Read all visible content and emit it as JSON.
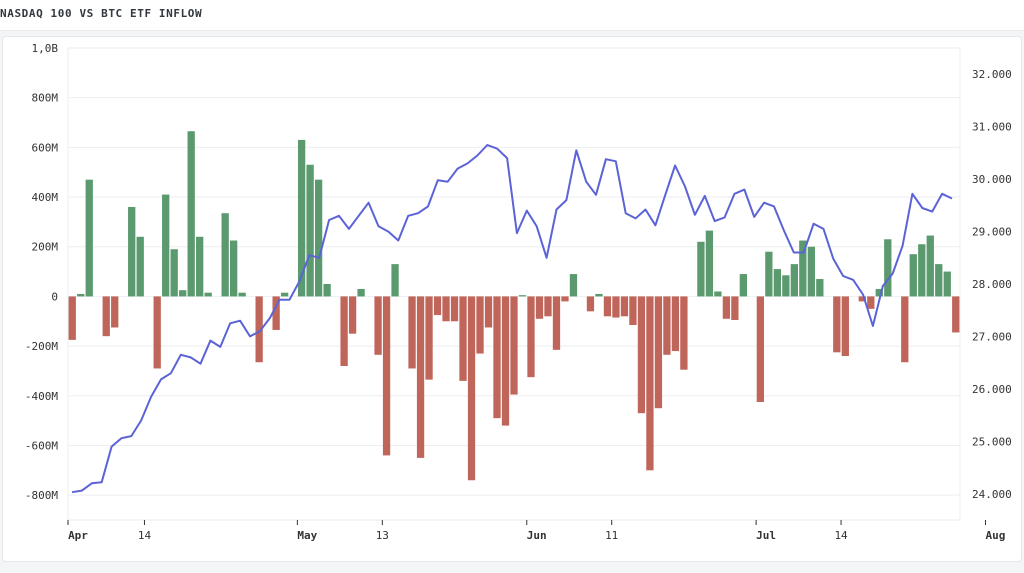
{
  "page": {
    "title": "NASDAQ 100 VS BTC ETF INFLOW"
  },
  "colors": {
    "positive_bar": "#5a9a6e",
    "negative_bar": "#c0655a",
    "line": "#5b63d6",
    "grid": "#eceef0",
    "axis_text": "#333333"
  },
  "chart_data": {
    "type": "bar",
    "combo": "bar+line",
    "title": "NASDAQ 100 VS BTC ETF INFLOW",
    "grid": true,
    "left_axis": {
      "min": -900000000,
      "max": 1000000000,
      "ticks": [
        {
          "value": 1000000000,
          "label": "1,0B"
        },
        {
          "value": 800000000,
          "label": "800M"
        },
        {
          "value": 600000000,
          "label": "600M"
        },
        {
          "value": 400000000,
          "label": "400M"
        },
        {
          "value": 200000000,
          "label": "200M"
        },
        {
          "value": 0,
          "label": "0"
        },
        {
          "value": -200000000,
          "label": "-200M"
        },
        {
          "value": -400000000,
          "label": "-400M"
        },
        {
          "value": -600000000,
          "label": "-600M"
        },
        {
          "value": -800000000,
          "label": "-800M"
        }
      ]
    },
    "right_axis": {
      "min": 23500,
      "max": 32500,
      "ticks": [
        {
          "value": 32000,
          "label": "32.000"
        },
        {
          "value": 31000,
          "label": "31.000"
        },
        {
          "value": 30000,
          "label": "30.000"
        },
        {
          "value": 29000,
          "label": "29.000"
        },
        {
          "value": 28000,
          "label": "28.000"
        },
        {
          "value": 27000,
          "label": "27.000"
        },
        {
          "value": 26000,
          "label": "26.000"
        },
        {
          "value": 25000,
          "label": "25.000"
        },
        {
          "value": 24000,
          "label": "24.000"
        }
      ]
    },
    "x_axis": {
      "ticks": [
        {
          "index": 0,
          "label": "Apr",
          "bold": true
        },
        {
          "index": 9,
          "label": "14",
          "bold": false
        },
        {
          "index": 27,
          "label": "May",
          "bold": true
        },
        {
          "index": 37,
          "label": "13",
          "bold": false
        },
        {
          "index": 54,
          "label": "Jun",
          "bold": true
        },
        {
          "index": 64,
          "label": "11",
          "bold": false
        },
        {
          "index": 81,
          "label": "Jul",
          "bold": true
        },
        {
          "index": 91,
          "label": "14",
          "bold": false
        },
        {
          "index": 108,
          "label": "Aug",
          "bold": true
        }
      ]
    },
    "series": [
      {
        "type": "bar",
        "axis": "left",
        "values": [
          -175000000,
          10000000,
          470000000,
          0,
          -160000000,
          -125000000,
          0,
          360000000,
          240000000,
          0,
          -290000000,
          410000000,
          190000000,
          25000000,
          665000000,
          240000000,
          15000000,
          0,
          335000000,
          225000000,
          15000000,
          0,
          -265000000,
          0,
          -135000000,
          15000000,
          0,
          630000000,
          530000000,
          470000000,
          50000000,
          0,
          -280000000,
          -150000000,
          30000000,
          0,
          -235000000,
          -640000000,
          130000000,
          0,
          -290000000,
          -650000000,
          -335000000,
          -75000000,
          -100000000,
          -100000000,
          -340000000,
          -740000000,
          -230000000,
          -125000000,
          -490000000,
          -520000000,
          -395000000,
          5000000,
          -325000000,
          -90000000,
          -80000000,
          -215000000,
          -20000000,
          90000000,
          0,
          -60000000,
          10000000,
          -80000000,
          -85000000,
          -80000000,
          -115000000,
          -470000000,
          -700000000,
          -450000000,
          -235000000,
          -220000000,
          -295000000,
          0,
          220000000,
          265000000,
          20000000,
          -90000000,
          -95000000,
          90000000,
          0,
          -425000000,
          180000000,
          110000000,
          85000000,
          130000000,
          225000000,
          200000000,
          70000000,
          0,
          -225000000,
          -240000000,
          0,
          -20000000,
          -50000000,
          30000000,
          230000000,
          0,
          -265000000,
          170000000,
          210000000,
          245000000,
          130000000,
          100000000,
          -145000000
        ]
      },
      {
        "type": "line",
        "axis": "right",
        "values": [
          24030,
          24060,
          24200,
          24220,
          24900,
          25060,
          25100,
          25400,
          25850,
          26180,
          26300,
          26650,
          26600,
          26480,
          26920,
          26800,
          27250,
          27300,
          27000,
          27100,
          27350,
          27700,
          27700,
          28050,
          28550,
          28500,
          29220,
          29300,
          29050,
          29300,
          29550,
          29100,
          29000,
          28830,
          29300,
          29350,
          29480,
          29980,
          29950,
          30200,
          30300,
          30450,
          30650,
          30580,
          30400,
          28970,
          29400,
          29100,
          28500,
          29420,
          29600,
          30550,
          29950,
          29700,
          30380,
          30340,
          29350,
          29250,
          29420,
          29120,
          29700,
          30260,
          29860,
          29320,
          29680,
          29200,
          29270,
          29720,
          29800,
          29280,
          29550,
          29480,
          29020,
          28600,
          28600,
          29150,
          29050,
          28480,
          28150,
          28080,
          27800,
          27200,
          27960,
          28200,
          28730,
          29720,
          29450,
          29380,
          29720,
          29630
        ]
      }
    ]
  }
}
